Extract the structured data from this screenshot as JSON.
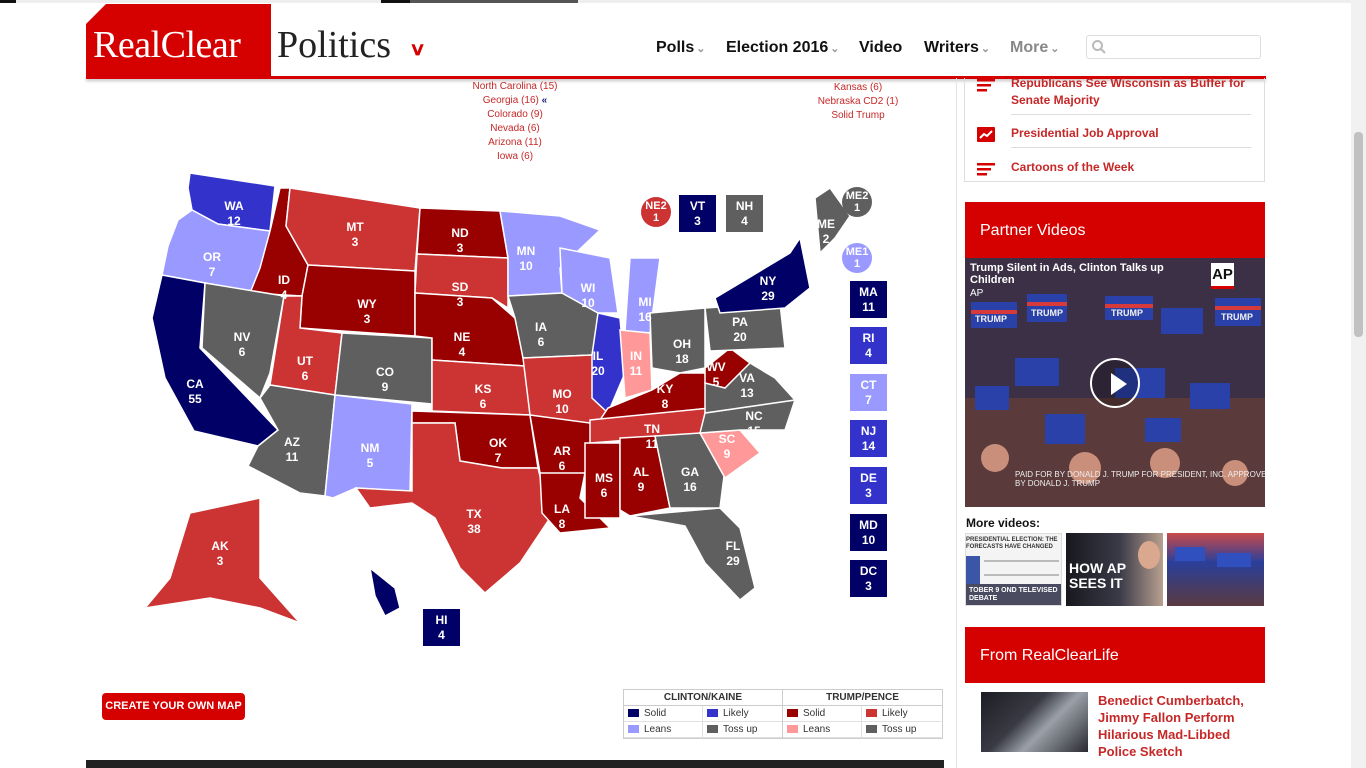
{
  "header": {
    "logo_brand": "RealClear",
    "logo_section": "Politics",
    "nav": [
      {
        "label": "Polls",
        "has_caret": true
      },
      {
        "label": "Election 2016",
        "has_caret": true
      },
      {
        "label": "Video",
        "has_caret": false
      },
      {
        "label": "Writers",
        "has_caret": true
      },
      {
        "label": "More",
        "has_caret": true
      }
    ],
    "search_placeholder": "",
    "icons": {
      "search": "search-icon",
      "logo_menu": "chevron-down-icon"
    }
  },
  "map": {
    "tossup_list": [
      "North Carolina (15)",
      "Georgia (16)",
      "Colorado (9)",
      "Nevada (6)",
      "Arizona (11)",
      "Iowa (6)"
    ],
    "tossup_marker": "«",
    "right_list": [
      "Kansas (6)",
      "Nebraska CD2 (1)",
      "Solid Trump"
    ],
    "colors": {
      "clinton_solid": "#000066",
      "clinton_likely": "#3333cc",
      "clinton_leans": "#9999ff",
      "tossup": "#5f5f5f",
      "trump_solid": "#990000",
      "trump_likely": "#cc3333",
      "trump_leans": "#ff9999"
    },
    "states": [
      {
        "abbr": "WA",
        "ev": "12",
        "rating": "clinton_likely"
      },
      {
        "abbr": "OR",
        "ev": "7",
        "rating": "clinton_leans"
      },
      {
        "abbr": "CA",
        "ev": "55",
        "rating": "clinton_solid"
      },
      {
        "abbr": "ID",
        "ev": "4",
        "rating": "trump_solid"
      },
      {
        "abbr": "NV",
        "ev": "6",
        "rating": "tossup"
      },
      {
        "abbr": "MT",
        "ev": "3",
        "rating": "trump_likely"
      },
      {
        "abbr": "WY",
        "ev": "3",
        "rating": "trump_solid"
      },
      {
        "abbr": "UT",
        "ev": "6",
        "rating": "trump_likely"
      },
      {
        "abbr": "AZ",
        "ev": "11",
        "rating": "tossup"
      },
      {
        "abbr": "CO",
        "ev": "9",
        "rating": "tossup"
      },
      {
        "abbr": "NM",
        "ev": "5",
        "rating": "clinton_leans"
      },
      {
        "abbr": "ND",
        "ev": "3",
        "rating": "trump_solid"
      },
      {
        "abbr": "SD",
        "ev": "3",
        "rating": "trump_likely"
      },
      {
        "abbr": "NE",
        "ev": "4",
        "rating": "trump_solid"
      },
      {
        "abbr": "KS",
        "ev": "6",
        "rating": "trump_likely"
      },
      {
        "abbr": "OK",
        "ev": "7",
        "rating": "trump_solid"
      },
      {
        "abbr": "TX",
        "ev": "38",
        "rating": "trump_likely"
      },
      {
        "abbr": "MN",
        "ev": "10",
        "rating": "clinton_leans"
      },
      {
        "abbr": "IA",
        "ev": "6",
        "rating": "tossup"
      },
      {
        "abbr": "MO",
        "ev": "10",
        "rating": "trump_likely"
      },
      {
        "abbr": "AR",
        "ev": "6",
        "rating": "trump_solid"
      },
      {
        "abbr": "LA",
        "ev": "8",
        "rating": "trump_solid"
      },
      {
        "abbr": "WI",
        "ev": "10",
        "rating": "clinton_leans"
      },
      {
        "abbr": "IL",
        "ev": "20",
        "rating": "clinton_likely"
      },
      {
        "abbr": "MI",
        "ev": "16",
        "rating": "clinton_leans"
      },
      {
        "abbr": "IN",
        "ev": "11",
        "rating": "trump_leans"
      },
      {
        "abbr": "OH",
        "ev": "18",
        "rating": "tossup"
      },
      {
        "abbr": "KY",
        "ev": "8",
        "rating": "trump_solid"
      },
      {
        "abbr": "TN",
        "ev": "11",
        "rating": "trump_likely"
      },
      {
        "abbr": "MS",
        "ev": "6",
        "rating": "trump_solid"
      },
      {
        "abbr": "AL",
        "ev": "9",
        "rating": "trump_solid"
      },
      {
        "abbr": "GA",
        "ev": "16",
        "rating": "tossup"
      },
      {
        "abbr": "FL",
        "ev": "29",
        "rating": "tossup"
      },
      {
        "abbr": "SC",
        "ev": "9",
        "rating": "trump_leans"
      },
      {
        "abbr": "NC",
        "ev": "15",
        "rating": "tossup"
      },
      {
        "abbr": "VA",
        "ev": "13",
        "rating": "tossup"
      },
      {
        "abbr": "WV",
        "ev": "5",
        "rating": "trump_solid"
      },
      {
        "abbr": "PA",
        "ev": "20",
        "rating": "tossup"
      },
      {
        "abbr": "NY",
        "ev": "29",
        "rating": "clinton_solid"
      },
      {
        "abbr": "ME",
        "ev": "2",
        "rating": "tossup"
      },
      {
        "abbr": "AK",
        "ev": "3",
        "rating": "trump_likely"
      },
      {
        "abbr": "HI",
        "ev": "4",
        "rating": "clinton_solid"
      }
    ],
    "small_states": [
      {
        "abbr": "VT",
        "ev": "3",
        "rating": "clinton_solid"
      },
      {
        "abbr": "NH",
        "ev": "4",
        "rating": "tossup"
      },
      {
        "abbr": "MA",
        "ev": "11",
        "rating": "clinton_solid"
      },
      {
        "abbr": "RI",
        "ev": "4",
        "rating": "clinton_likely"
      },
      {
        "abbr": "CT",
        "ev": "7",
        "rating": "clinton_leans"
      },
      {
        "abbr": "NJ",
        "ev": "14",
        "rating": "clinton_likely"
      },
      {
        "abbr": "DE",
        "ev": "3",
        "rating": "clinton_likely"
      },
      {
        "abbr": "MD",
        "ev": "10",
        "rating": "clinton_solid"
      },
      {
        "abbr": "DC",
        "ev": "3",
        "rating": "clinton_solid"
      }
    ],
    "districts": [
      {
        "abbr": "NE2",
        "ev": "1",
        "rating": "trump_likely"
      },
      {
        "abbr": "ME2",
        "ev": "1",
        "rating": "tossup"
      },
      {
        "abbr": "ME1",
        "ev": "1",
        "rating": "clinton_leans"
      }
    ],
    "create_button": "CREATE YOUR OWN MAP"
  },
  "legend": {
    "clinton_head": "CLINTON/KAINE",
    "trump_head": "TRUMP/PENCE",
    "solid": "Solid",
    "likely": "Likely",
    "leans": "Leans",
    "tossup": "Toss up"
  },
  "sidebar": {
    "items": [
      {
        "text": "Republicans See Wisconsin as Buffer for Senate Majority",
        "icon": "list-icon"
      },
      {
        "text": "Presidential Job Approval",
        "icon": "chart-icon"
      },
      {
        "text": "Cartoons of the Week",
        "icon": "list-icon"
      }
    ],
    "partner_videos": "Partner Videos",
    "video": {
      "title": "Trump Silent in Ads, Clinton Talks up Children",
      "source": "AP",
      "ap_logo": "AP",
      "footer": "PAID FOR BY DONALD J. TRUMP FOR PRESIDENT, INC. APPROVED BY DONALD J. TRUMP",
      "sign_text": "TRUMP"
    },
    "more_videos": "More videos:",
    "thumbs": [
      {
        "caption": "PRESIDENTIAL ELECTION: THE FORECASTS HAVE CHANGED",
        "sub": "TOBER 9 OND TELEVISED DEBATE"
      },
      {
        "caption": "HOW AP SEES IT"
      },
      {
        "caption": ""
      }
    ],
    "realclearlife": "From RealClearLife",
    "life_story": "Benedict Cumberbatch, Jimmy Fallon Perform Hilarious Mad-Libbed Police Sketch"
  }
}
